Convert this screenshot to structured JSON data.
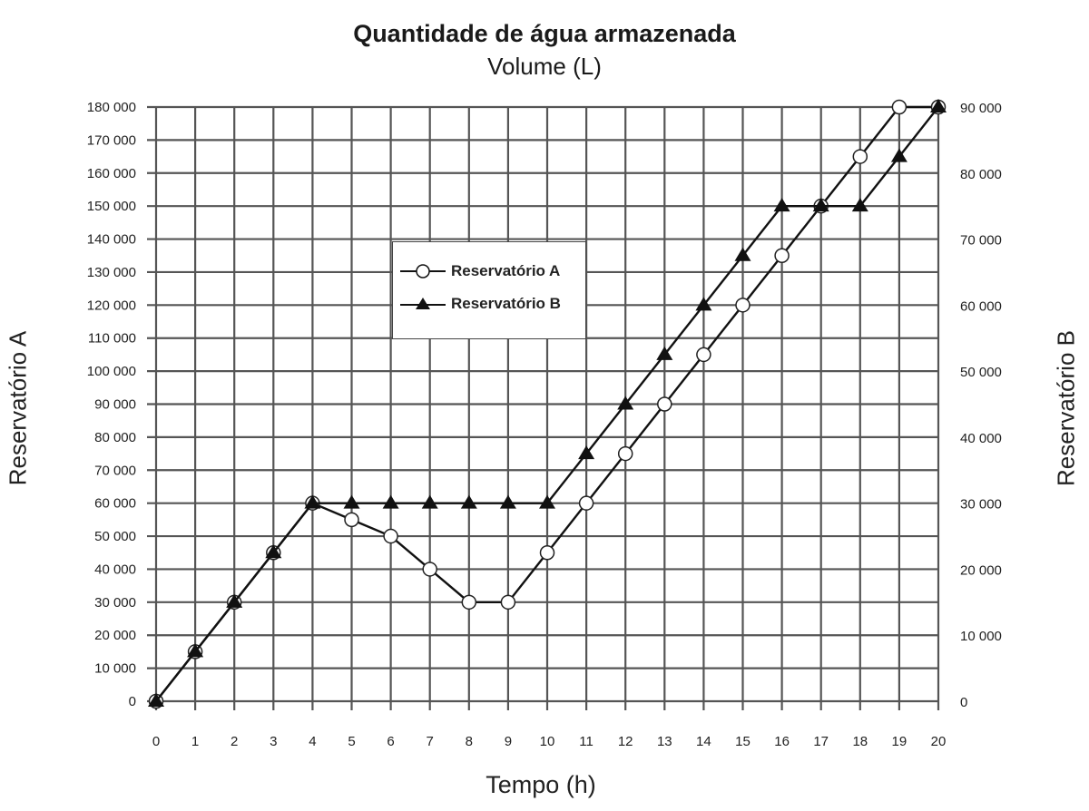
{
  "chart_data": {
    "type": "line",
    "title": "Quantidade de água armazenada",
    "subtitle": "Volume (L)",
    "xlabel": "Tempo (h)",
    "ylabel_left": "Reservatório A",
    "ylabel_right": "Reservatório B",
    "x": [
      0,
      1,
      2,
      3,
      4,
      5,
      6,
      7,
      8,
      9,
      10,
      11,
      12,
      13,
      14,
      15,
      16,
      17,
      18,
      19,
      20
    ],
    "xlim": [
      0,
      20
    ],
    "ylim_left": [
      0,
      180000
    ],
    "ylim_right": [
      0,
      90000
    ],
    "y_ticks_left": [
      "0",
      "10 000",
      "20 000",
      "30 000",
      "40 000",
      "50 000",
      "60 000",
      "70 000",
      "80 000",
      "90 000",
      "100 000",
      "110 000",
      "120 000",
      "130 000",
      "140 000",
      "150 000",
      "160 000",
      "170 000",
      "180 000"
    ],
    "y_ticks_right": [
      "0",
      "10 000",
      "20 000",
      "30 000",
      "40 000",
      "50 000",
      "60 000",
      "70 000",
      "80 000",
      "90 000"
    ],
    "grid": true,
    "legend_position": "upper-center-left",
    "series": [
      {
        "name": "Reservatório A",
        "axis": "left",
        "marker": "open-circle",
        "values": [
          0,
          15000,
          30000,
          45000,
          60000,
          55000,
          50000,
          40000,
          30000,
          30000,
          45000,
          60000,
          75000,
          90000,
          105000,
          120000,
          135000,
          150000,
          165000,
          180000,
          180000
        ]
      },
      {
        "name": "Reservatório B",
        "axis": "right",
        "marker": "filled-triangle",
        "values": [
          0,
          7500,
          15000,
          22500,
          30000,
          30000,
          30000,
          30000,
          30000,
          30000,
          30000,
          37500,
          45000,
          52500,
          60000,
          67500,
          75000,
          75000,
          75000,
          82500,
          90000
        ]
      }
    ]
  },
  "legend": {
    "a_label": "Reservatório A",
    "b_label": "Reservatório B"
  }
}
